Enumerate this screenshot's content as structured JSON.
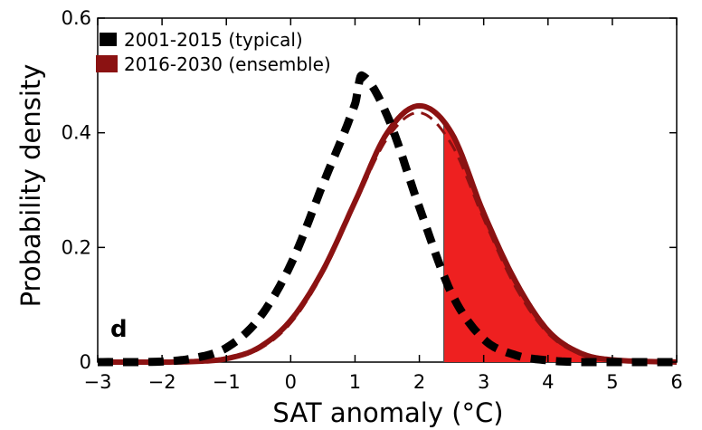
{
  "chart_data": {
    "type": "line",
    "xlabel": "SAT anomaly (°C)",
    "ylabel": "Probability density",
    "xlim": [
      -3,
      6
    ],
    "ylim": [
      0,
      0.6
    ],
    "x_ticks": [
      "−3",
      "−2",
      "−1",
      "0",
      "1",
      "2",
      "3",
      "4",
      "5",
      "6"
    ],
    "y_ticks": [
      "0",
      "0.2",
      "0.4",
      "0.6"
    ],
    "panel_label": "d",
    "legend_position": "top-left",
    "series": [
      {
        "name": "2001-2015 (typical)",
        "style": "dashed",
        "color": "#000000",
        "x": [
          -3,
          -2,
          -1.5,
          -1,
          -0.5,
          0,
          0.5,
          1,
          1.1,
          1.5,
          2,
          2.5,
          3,
          3.5,
          4,
          4.5,
          5,
          6
        ],
        "y": [
          0.0,
          0.001,
          0.007,
          0.025,
          0.075,
          0.17,
          0.31,
          0.45,
          0.5,
          0.43,
          0.27,
          0.12,
          0.04,
          0.012,
          0.003,
          0.0,
          0.0,
          0.0
        ]
      },
      {
        "name": "2016-2030 (ensemble)",
        "style": "solid",
        "color": "#8b1212",
        "x": [
          -3,
          -2,
          -1.5,
          -1,
          -0.5,
          0,
          0.5,
          1,
          1.5,
          2,
          2.5,
          3,
          3.5,
          4,
          4.5,
          5,
          6
        ],
        "y": [
          0.0,
          0.0,
          0.001,
          0.006,
          0.025,
          0.073,
          0.16,
          0.28,
          0.4,
          0.447,
          0.4,
          0.26,
          0.14,
          0.055,
          0.016,
          0.004,
          0.0
        ]
      },
      {
        "name": "",
        "style": "dashed",
        "color": "#8b1212",
        "x": [
          -3,
          -2,
          -1.5,
          -1,
          -0.5,
          0,
          0.5,
          1,
          1.5,
          2,
          2.5,
          3,
          3.5,
          4,
          4.5,
          5,
          6
        ],
        "y": [
          0.0,
          0.0,
          0.001,
          0.005,
          0.022,
          0.068,
          0.155,
          0.275,
          0.39,
          0.435,
          0.38,
          0.25,
          0.13,
          0.05,
          0.014,
          0.003,
          0.0
        ]
      }
    ],
    "shaded_region": {
      "x_from": 2.38,
      "x_to": 6,
      "color": "#ee2020",
      "under_series": "2016-2030 (ensemble)"
    }
  }
}
